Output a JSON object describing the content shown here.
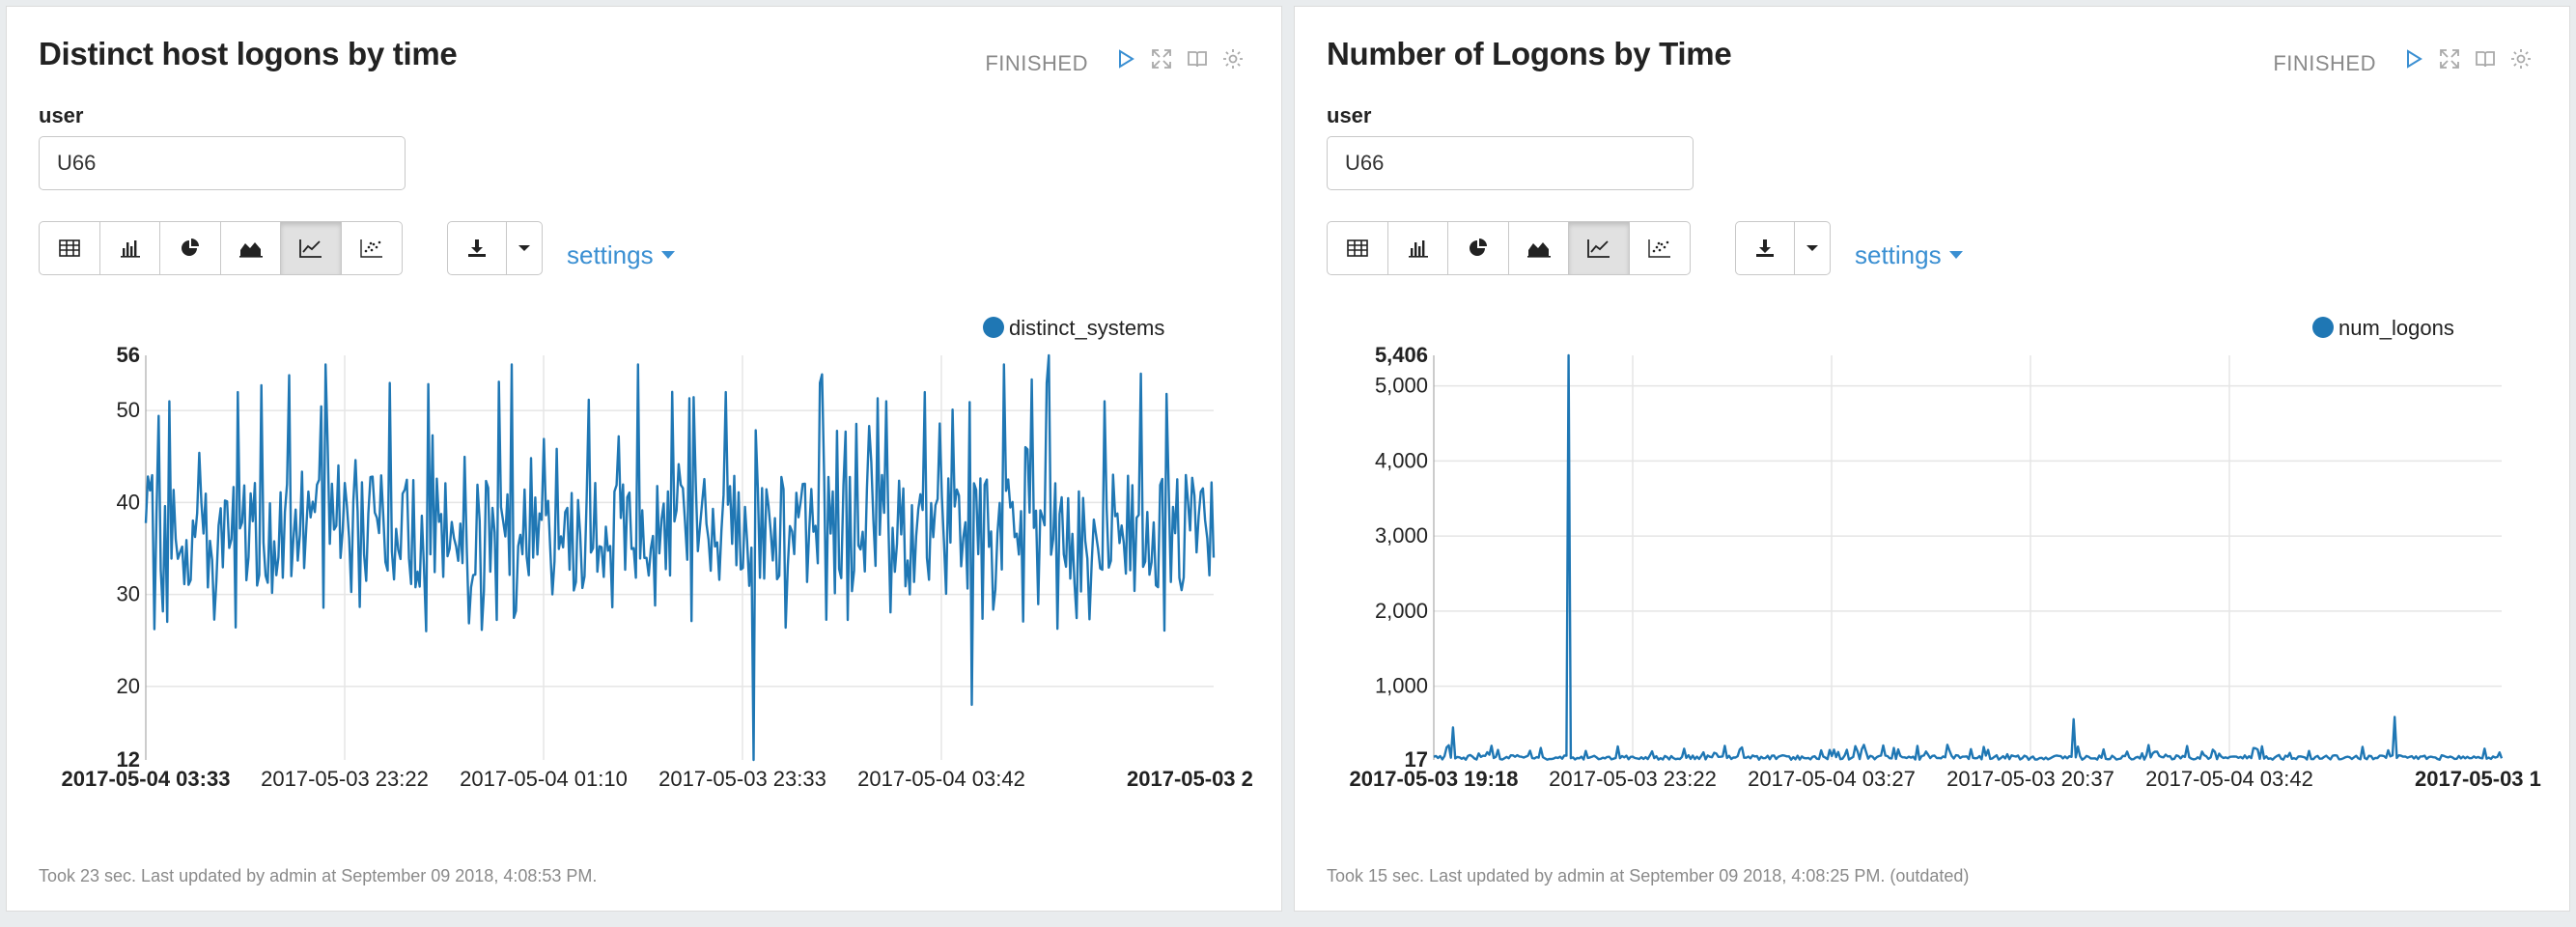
{
  "panels": [
    {
      "title": "Distinct host logons by time",
      "status": "FINISHED",
      "param_label": "user",
      "param_value": "U66",
      "settings_label": "settings",
      "footer": "Took 23 sec. Last updated by admin at September 09 2018, 4:08:53 PM.",
      "view_buttons": [
        "table-icon",
        "bar-chart-icon",
        "pie-chart-icon",
        "area-chart-icon",
        "line-chart-icon",
        "scatter-chart-icon"
      ],
      "active_view": "line-chart-icon"
    },
    {
      "title": "Number of Logons by Time",
      "status": "FINISHED",
      "param_label": "user",
      "param_value": "U66",
      "settings_label": "settings",
      "footer": "Took 15 sec. Last updated by admin at September 09 2018, 4:08:25 PM. (outdated)",
      "view_buttons": [
        "table-icon",
        "bar-chart-icon",
        "pie-chart-icon",
        "area-chart-icon",
        "line-chart-icon",
        "scatter-chart-icon"
      ],
      "active_view": "line-chart-icon"
    }
  ],
  "colors": {
    "series": "#1f77b4",
    "link": "#3a8fd2",
    "grid": "#e5e5e5"
  },
  "chart_data": [
    {
      "type": "line",
      "legend": [
        "distinct_systems"
      ],
      "ylim": [
        12,
        56
      ],
      "yticks": [
        "56",
        "50",
        "40",
        "30",
        "20",
        "12"
      ],
      "ytick_values": [
        56,
        50,
        40,
        30,
        20,
        12
      ],
      "xtick_labels": [
        "2017-05-04 03:33",
        "2017-05-03 23:22",
        "2017-05-04 01:10",
        "2017-05-03 23:33",
        "2017-05-04 03:42",
        "2017-05-03 2"
      ],
      "n_points": 500,
      "series": [
        {
          "name": "distinct_systems",
          "summary": "fluctuating between ~26 and ~56, mostly 30-42",
          "min": 12,
          "max": 56
        }
      ]
    },
    {
      "type": "line",
      "legend": [
        "num_logons"
      ],
      "ylim": [
        17,
        5406
      ],
      "yticks": [
        "5,406",
        "5,000",
        "4,000",
        "3,000",
        "2,000",
        "1,000",
        "17"
      ],
      "ytick_values": [
        5406,
        5000,
        4000,
        3000,
        2000,
        1000,
        17
      ],
      "xtick_labels": [
        "2017-05-03 19:18",
        "2017-05-03 23:22",
        "2017-05-04 03:27",
        "2017-05-03 20:37",
        "2017-05-04 03:42",
        "2017-05-03 1"
      ],
      "n_points": 500,
      "series": [
        {
          "name": "num_logons",
          "summary": "near baseline with peak of 5,406 early on",
          "min": 17,
          "max": 5406,
          "peaks": [
            {
              "x_index": 63,
              "value": 5406
            },
            {
              "x_index": 9,
              "value": 450
            },
            {
              "x_index": 300,
              "value": 560
            },
            {
              "x_index": 450,
              "value": 590
            }
          ]
        }
      ]
    }
  ]
}
